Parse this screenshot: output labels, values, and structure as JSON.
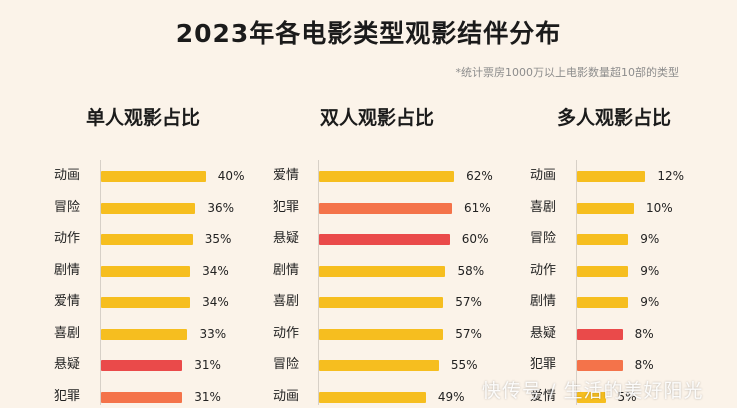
{
  "title": "2023年各电影类型观影结伴分布",
  "subtitle": "*统计票房1000万以上电影数量超10部的类型",
  "watermark": "快传号 / 生活的美好阳光",
  "colors": {
    "background": "#fbf3e9",
    "yellow": "#f6be1f",
    "orange": "#f4734a",
    "red": "#ea4a4a"
  },
  "chart_data": [
    {
      "type": "bar",
      "orientation": "horizontal",
      "title": "单人观影占比",
      "categories": [
        "动画",
        "冒险",
        "动作",
        "剧情",
        "爱情",
        "喜剧",
        "悬疑",
        "犯罪"
      ],
      "values": [
        40,
        36,
        35,
        34,
        34,
        33,
        31,
        31
      ],
      "labels": [
        "40%",
        "36%",
        "35%",
        "34%",
        "34%",
        "33%",
        "31%",
        "31%"
      ],
      "colors": [
        "#f6be1f",
        "#f6be1f",
        "#f6be1f",
        "#f6be1f",
        "#f6be1f",
        "#f6be1f",
        "#ea4a4a",
        "#f4734a"
      ],
      "unit": "%"
    },
    {
      "type": "bar",
      "orientation": "horizontal",
      "title": "双人观影占比",
      "categories": [
        "爱情",
        "犯罪",
        "悬疑",
        "剧情",
        "喜剧",
        "动作",
        "冒险",
        "动画"
      ],
      "values": [
        62,
        61,
        60,
        58,
        57,
        57,
        55,
        49
      ],
      "labels": [
        "62%",
        "61%",
        "60%",
        "58%",
        "57%",
        "57%",
        "55%",
        "49%"
      ],
      "colors": [
        "#f6be1f",
        "#f4734a",
        "#ea4a4a",
        "#f6be1f",
        "#f6be1f",
        "#f6be1f",
        "#f6be1f",
        "#f6be1f"
      ],
      "unit": "%"
    },
    {
      "type": "bar",
      "orientation": "horizontal",
      "title": "多人观影占比",
      "categories": [
        "动画",
        "喜剧",
        "冒险",
        "动作",
        "剧情",
        "悬疑",
        "犯罪",
        "爱情"
      ],
      "values": [
        12,
        10,
        9,
        9,
        9,
        8,
        8,
        5
      ],
      "labels": [
        "12%",
        "10%",
        "9%",
        "9%",
        "9%",
        "8%",
        "8%",
        "5%"
      ],
      "colors": [
        "#f6be1f",
        "#f6be1f",
        "#f6be1f",
        "#f6be1f",
        "#f6be1f",
        "#ea4a4a",
        "#f4734a",
        "#f6be1f"
      ],
      "unit": "%"
    }
  ]
}
